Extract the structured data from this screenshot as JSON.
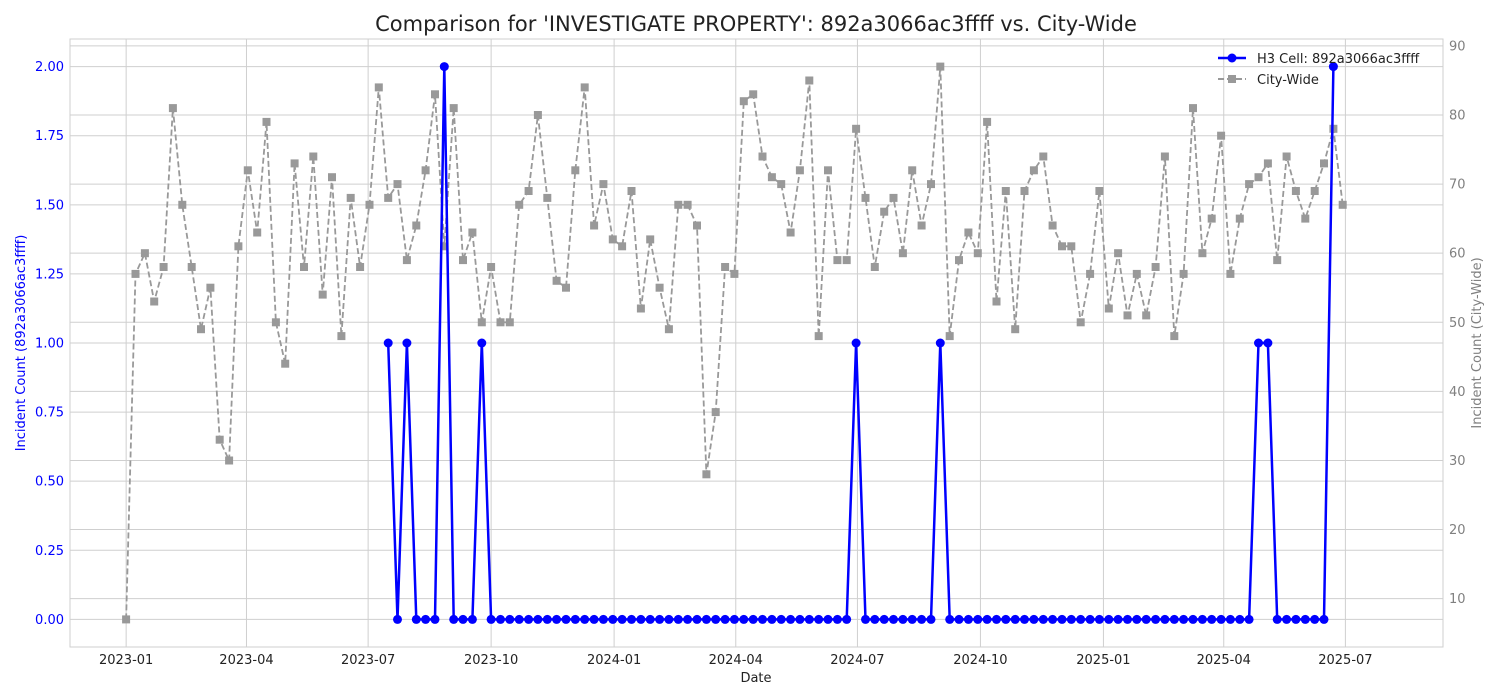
{
  "chart_data": {
    "type": "line",
    "title": "Comparison for 'INVESTIGATE PROPERTY': 892a3066ac3ffff vs. City-Wide",
    "xlabel": "Date",
    "ylabel_left": "Incident Count (892a3066ac3ffff)",
    "ylabel_right": "Incident Count (City-Wide)",
    "x_ticks": [
      "2023-01",
      "2023-04",
      "2023-07",
      "2023-10",
      "2024-01",
      "2024-04",
      "2024-07",
      "2024-10",
      "2025-01",
      "2025-04",
      "2025-07"
    ],
    "y_left_ticks": [
      "0.00",
      "0.25",
      "0.50",
      "0.75",
      "1.00",
      "1.25",
      "1.50",
      "1.75",
      "2.00"
    ],
    "y_right_ticks": [
      "10",
      "20",
      "30",
      "40",
      "50",
      "60",
      "70",
      "80",
      "90"
    ],
    "ylim_left": [
      -0.1,
      2.1
    ],
    "ylim_right": [
      3,
      91
    ],
    "grid": true,
    "legend_position": "top-right",
    "series": [
      {
        "name": "H3 Cell: 892a3066ac3ffff",
        "axis": "left",
        "color": "#0000ff",
        "marker": "circle",
        "line_style": "solid",
        "points": [
          [
            "2023-07-16",
            1
          ],
          [
            "2023-07-23",
            0
          ],
          [
            "2023-07-30",
            1
          ],
          [
            "2023-08-06",
            0
          ],
          [
            "2023-08-13",
            0
          ],
          [
            "2023-08-20",
            0
          ],
          [
            "2023-08-27",
            2
          ],
          [
            "2023-09-03",
            0
          ],
          [
            "2023-09-10",
            0
          ],
          [
            "2023-09-17",
            0
          ],
          [
            "2023-09-24",
            1
          ],
          [
            "2023-10-01",
            0
          ],
          [
            "2023-10-08",
            0
          ],
          [
            "2023-10-15",
            0
          ],
          [
            "2023-10-22",
            0
          ],
          [
            "2023-10-29",
            0
          ],
          [
            "2023-11-05",
            0
          ],
          [
            "2023-11-12",
            0
          ],
          [
            "2023-11-19",
            0
          ],
          [
            "2023-11-26",
            0
          ],
          [
            "2023-12-03",
            0
          ],
          [
            "2023-12-10",
            0
          ],
          [
            "2023-12-17",
            0
          ],
          [
            "2023-12-24",
            0
          ],
          [
            "2023-12-31",
            0
          ],
          [
            "2024-01-07",
            0
          ],
          [
            "2024-01-14",
            0
          ],
          [
            "2024-01-21",
            0
          ],
          [
            "2024-01-28",
            0
          ],
          [
            "2024-02-04",
            0
          ],
          [
            "2024-02-11",
            0
          ],
          [
            "2024-02-18",
            0
          ],
          [
            "2024-02-25",
            0
          ],
          [
            "2024-03-03",
            0
          ],
          [
            "2024-03-10",
            0
          ],
          [
            "2024-03-17",
            0
          ],
          [
            "2024-03-24",
            0
          ],
          [
            "2024-03-31",
            0
          ],
          [
            "2024-04-07",
            0
          ],
          [
            "2024-04-14",
            0
          ],
          [
            "2024-04-21",
            0
          ],
          [
            "2024-04-28",
            0
          ],
          [
            "2024-05-05",
            0
          ],
          [
            "2024-05-12",
            0
          ],
          [
            "2024-05-19",
            0
          ],
          [
            "2024-05-26",
            0
          ],
          [
            "2024-06-02",
            0
          ],
          [
            "2024-06-09",
            0
          ],
          [
            "2024-06-16",
            0
          ],
          [
            "2024-06-23",
            0
          ],
          [
            "2024-06-30",
            1
          ],
          [
            "2024-07-07",
            0
          ],
          [
            "2024-07-14",
            0
          ],
          [
            "2024-07-21",
            0
          ],
          [
            "2024-07-28",
            0
          ],
          [
            "2024-08-04",
            0
          ],
          [
            "2024-08-11",
            0
          ],
          [
            "2024-08-18",
            0
          ],
          [
            "2024-08-25",
            0
          ],
          [
            "2024-09-01",
            1
          ],
          [
            "2024-09-08",
            0
          ],
          [
            "2024-09-15",
            0
          ],
          [
            "2024-09-22",
            0
          ],
          [
            "2024-09-29",
            0
          ],
          [
            "2024-10-06",
            0
          ],
          [
            "2024-10-13",
            0
          ],
          [
            "2024-10-20",
            0
          ],
          [
            "2024-10-27",
            0
          ],
          [
            "2024-11-03",
            0
          ],
          [
            "2024-11-10",
            0
          ],
          [
            "2024-11-17",
            0
          ],
          [
            "2024-11-24",
            0
          ],
          [
            "2024-12-01",
            0
          ],
          [
            "2024-12-08",
            0
          ],
          [
            "2024-12-15",
            0
          ],
          [
            "2024-12-22",
            0
          ],
          [
            "2024-12-29",
            0
          ],
          [
            "2025-01-05",
            0
          ],
          [
            "2025-01-12",
            0
          ],
          [
            "2025-01-19",
            0
          ],
          [
            "2025-01-26",
            0
          ],
          [
            "2025-02-02",
            0
          ],
          [
            "2025-02-09",
            0
          ],
          [
            "2025-02-16",
            0
          ],
          [
            "2025-02-23",
            0
          ],
          [
            "2025-03-02",
            0
          ],
          [
            "2025-03-09",
            0
          ],
          [
            "2025-03-16",
            0
          ],
          [
            "2025-03-23",
            0
          ],
          [
            "2025-03-30",
            0
          ],
          [
            "2025-04-06",
            0
          ],
          [
            "2025-04-13",
            0
          ],
          [
            "2025-04-20",
            0
          ],
          [
            "2025-04-27",
            1
          ],
          [
            "2025-05-04",
            1
          ],
          [
            "2025-05-11",
            0
          ],
          [
            "2025-05-18",
            0
          ],
          [
            "2025-05-25",
            0
          ],
          [
            "2025-06-01",
            0
          ],
          [
            "2025-06-08",
            0
          ],
          [
            "2025-06-15",
            0
          ],
          [
            "2025-06-22",
            2
          ]
        ]
      },
      {
        "name": "City-Wide",
        "axis": "right",
        "color": "#999999",
        "marker": "square",
        "line_style": "dashed",
        "points": [
          [
            "2023-01-01",
            7
          ],
          [
            "2023-01-08",
            57
          ],
          [
            "2023-01-15",
            60
          ],
          [
            "2023-01-22",
            53
          ],
          [
            "2023-01-29",
            58
          ],
          [
            "2023-02-05",
            81
          ],
          [
            "2023-02-12",
            67
          ],
          [
            "2023-02-19",
            58
          ],
          [
            "2023-02-26",
            49
          ],
          [
            "2023-03-05",
            55
          ],
          [
            "2023-03-12",
            33
          ],
          [
            "2023-03-19",
            30
          ],
          [
            "2023-03-26",
            61
          ],
          [
            "2023-04-02",
            72
          ],
          [
            "2023-04-09",
            63
          ],
          [
            "2023-04-16",
            79
          ],
          [
            "2023-04-23",
            50
          ],
          [
            "2023-04-30",
            44
          ],
          [
            "2023-05-07",
            73
          ],
          [
            "2023-05-14",
            58
          ],
          [
            "2023-05-21",
            74
          ],
          [
            "2023-05-28",
            54
          ],
          [
            "2023-06-04",
            71
          ],
          [
            "2023-06-11",
            48
          ],
          [
            "2023-06-18",
            68
          ],
          [
            "2023-06-25",
            58
          ],
          [
            "2023-07-02",
            67
          ],
          [
            "2023-07-09",
            84
          ],
          [
            "2023-07-16",
            68
          ],
          [
            "2023-07-23",
            70
          ],
          [
            "2023-07-30",
            59
          ],
          [
            "2023-08-06",
            64
          ],
          [
            "2023-08-13",
            72
          ],
          [
            "2023-08-20",
            83
          ],
          [
            "2023-08-27",
            61
          ],
          [
            "2023-09-03",
            81
          ],
          [
            "2023-09-10",
            59
          ],
          [
            "2023-09-17",
            63
          ],
          [
            "2023-09-24",
            50
          ],
          [
            "2023-10-01",
            58
          ],
          [
            "2023-10-08",
            50
          ],
          [
            "2023-10-15",
            50
          ],
          [
            "2023-10-22",
            67
          ],
          [
            "2023-10-29",
            69
          ],
          [
            "2023-11-05",
            80
          ],
          [
            "2023-11-12",
            68
          ],
          [
            "2023-11-19",
            56
          ],
          [
            "2023-11-26",
            55
          ],
          [
            "2023-12-03",
            72
          ],
          [
            "2023-12-10",
            84
          ],
          [
            "2023-12-17",
            64
          ],
          [
            "2023-12-24",
            70
          ],
          [
            "2023-12-31",
            62
          ],
          [
            "2024-01-07",
            61
          ],
          [
            "2024-01-14",
            69
          ],
          [
            "2024-01-21",
            52
          ],
          [
            "2024-01-28",
            62
          ],
          [
            "2024-02-04",
            55
          ],
          [
            "2024-02-11",
            49
          ],
          [
            "2024-02-18",
            67
          ],
          [
            "2024-02-25",
            67
          ],
          [
            "2024-03-03",
            64
          ],
          [
            "2024-03-10",
            28
          ],
          [
            "2024-03-17",
            37
          ],
          [
            "2024-03-24",
            58
          ],
          [
            "2024-03-31",
            57
          ],
          [
            "2024-04-07",
            82
          ],
          [
            "2024-04-14",
            83
          ],
          [
            "2024-04-21",
            74
          ],
          [
            "2024-04-28",
            71
          ],
          [
            "2024-05-05",
            70
          ],
          [
            "2024-05-12",
            63
          ],
          [
            "2024-05-19",
            72
          ],
          [
            "2024-05-26",
            85
          ],
          [
            "2024-06-02",
            48
          ],
          [
            "2024-06-09",
            72
          ],
          [
            "2024-06-16",
            59
          ],
          [
            "2024-06-23",
            59
          ],
          [
            "2024-06-30",
            78
          ],
          [
            "2024-07-07",
            68
          ],
          [
            "2024-07-14",
            58
          ],
          [
            "2024-07-21",
            66
          ],
          [
            "2024-07-28",
            68
          ],
          [
            "2024-08-04",
            60
          ],
          [
            "2024-08-11",
            72
          ],
          [
            "2024-08-18",
            64
          ],
          [
            "2024-08-25",
            70
          ],
          [
            "2024-09-01",
            87
          ],
          [
            "2024-09-08",
            48
          ],
          [
            "2024-09-15",
            59
          ],
          [
            "2024-09-22",
            63
          ],
          [
            "2024-09-29",
            60
          ],
          [
            "2024-10-06",
            79
          ],
          [
            "2024-10-13",
            53
          ],
          [
            "2024-10-20",
            69
          ],
          [
            "2024-10-27",
            49
          ],
          [
            "2024-11-03",
            69
          ],
          [
            "2024-11-10",
            72
          ],
          [
            "2024-11-17",
            74
          ],
          [
            "2024-11-24",
            64
          ],
          [
            "2024-12-01",
            61
          ],
          [
            "2024-12-08",
            61
          ],
          [
            "2024-12-15",
            50
          ],
          [
            "2024-12-22",
            57
          ],
          [
            "2024-12-29",
            69
          ],
          [
            "2025-01-05",
            52
          ],
          [
            "2025-01-12",
            60
          ],
          [
            "2025-01-19",
            51
          ],
          [
            "2025-01-26",
            57
          ],
          [
            "2025-02-02",
            51
          ],
          [
            "2025-02-09",
            58
          ],
          [
            "2025-02-16",
            74
          ],
          [
            "2025-02-23",
            48
          ],
          [
            "2025-03-02",
            57
          ],
          [
            "2025-03-09",
            81
          ],
          [
            "2025-03-16",
            60
          ],
          [
            "2025-03-23",
            65
          ],
          [
            "2025-03-30",
            77
          ],
          [
            "2025-04-06",
            57
          ],
          [
            "2025-04-13",
            65
          ],
          [
            "2025-04-20",
            70
          ],
          [
            "2025-04-27",
            71
          ],
          [
            "2025-05-04",
            73
          ],
          [
            "2025-05-11",
            59
          ],
          [
            "2025-05-18",
            74
          ],
          [
            "2025-05-25",
            69
          ],
          [
            "2025-06-01",
            65
          ],
          [
            "2025-06-08",
            69
          ],
          [
            "2025-06-15",
            73
          ],
          [
            "2025-06-22",
            78
          ],
          [
            "2025-06-29",
            67
          ]
        ]
      }
    ]
  }
}
